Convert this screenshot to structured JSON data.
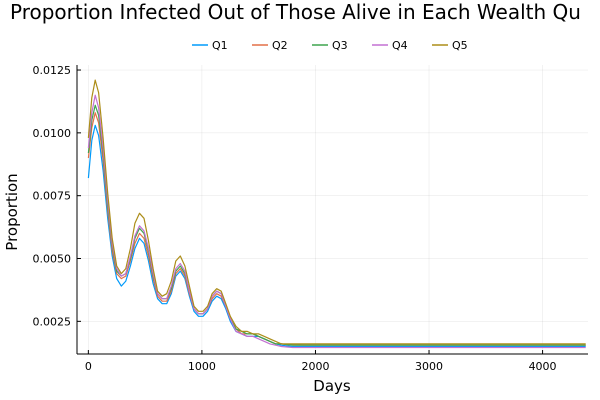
{
  "chart_data": {
    "type": "line",
    "title": "Proportion Infected Out of Those Alive in Each Wealth Qu",
    "xlabel": "Days",
    "ylabel": "Proportion",
    "xlim": [
      -100,
      4400
    ],
    "ylim": [
      0.0012,
      0.0127
    ],
    "grid": true,
    "legend_placement": "top-center",
    "x_ticks": [
      0,
      1000,
      2000,
      3000,
      4000
    ],
    "x_tick_labels": [
      "0",
      "1000",
      "2000",
      "3000",
      "4000"
    ],
    "y_ticks": [
      0.0025,
      0.005,
      0.0075,
      0.01,
      0.0125
    ],
    "y_tick_labels": [
      "0.0025",
      "0.0050",
      "0.0075",
      "0.0100",
      "0.0125"
    ],
    "x": [
      0,
      30,
      60,
      90,
      130,
      170,
      210,
      250,
      290,
      330,
      370,
      410,
      450,
      490,
      530,
      570,
      610,
      650,
      690,
      730,
      770,
      810,
      850,
      890,
      930,
      970,
      1010,
      1050,
      1090,
      1130,
      1170,
      1210,
      1250,
      1300,
      1350,
      1400,
      1450,
      1500,
      1550,
      1600,
      1650,
      1700,
      1750,
      1800,
      1900,
      2000,
      2500,
      3000,
      3500,
      4000,
      4380
    ],
    "series": [
      {
        "name": "Q1",
        "color": "#009AFA",
        "values": [
          0.0082,
          0.0097,
          0.0103,
          0.0099,
          0.0085,
          0.0066,
          0.0051,
          0.0042,
          0.0039,
          0.0041,
          0.0047,
          0.0054,
          0.0058,
          0.0056,
          0.0049,
          0.004,
          0.0034,
          0.0032,
          0.0032,
          0.0036,
          0.0043,
          0.0045,
          0.0042,
          0.0035,
          0.0029,
          0.0027,
          0.0027,
          0.0029,
          0.0033,
          0.0035,
          0.0034,
          0.003,
          0.0025,
          0.0021,
          0.002,
          0.0019,
          0.0019,
          0.0019,
          0.0018,
          0.0017,
          0.0016,
          0.00155,
          0.00152,
          0.0015,
          0.0015,
          0.0015,
          0.0015,
          0.0015,
          0.0015,
          0.0015,
          0.0015
        ]
      },
      {
        "name": "Q2",
        "color": "#E36F47",
        "values": [
          0.009,
          0.0102,
          0.0108,
          0.0104,
          0.0089,
          0.0069,
          0.0053,
          0.0044,
          0.0042,
          0.0043,
          0.0049,
          0.0056,
          0.006,
          0.0058,
          0.0051,
          0.0042,
          0.0035,
          0.0033,
          0.0033,
          0.0037,
          0.0044,
          0.0046,
          0.0043,
          0.0036,
          0.003,
          0.0028,
          0.0028,
          0.003,
          0.0034,
          0.0036,
          0.0035,
          0.0031,
          0.0026,
          0.0022,
          0.002,
          0.002,
          0.002,
          0.0019,
          0.0018,
          0.0017,
          0.0016,
          0.0016,
          0.00157,
          0.00156,
          0.00155,
          0.00155,
          0.00155,
          0.00155,
          0.00155,
          0.00155,
          0.00155
        ]
      },
      {
        "name": "Q3",
        "color": "#3EA44E",
        "values": [
          0.0092,
          0.0105,
          0.0111,
          0.0107,
          0.0092,
          0.0071,
          0.0055,
          0.0045,
          0.0043,
          0.0044,
          0.005,
          0.0058,
          0.0062,
          0.006,
          0.0053,
          0.0043,
          0.0036,
          0.0034,
          0.0034,
          0.0038,
          0.0045,
          0.0047,
          0.0044,
          0.0037,
          0.003,
          0.0028,
          0.0028,
          0.003,
          0.0035,
          0.0037,
          0.0036,
          0.0031,
          0.0026,
          0.0022,
          0.0021,
          0.002,
          0.002,
          0.0019,
          0.0018,
          0.0017,
          0.0016,
          0.0016,
          0.00157,
          0.00155,
          0.00155,
          0.00155,
          0.00155,
          0.00155,
          0.00155,
          0.00155,
          0.00155
        ]
      },
      {
        "name": "Q4",
        "color": "#C271D2",
        "values": [
          0.0094,
          0.0108,
          0.0115,
          0.011,
          0.0094,
          0.0073,
          0.0056,
          0.0046,
          0.0043,
          0.0044,
          0.0051,
          0.0059,
          0.0063,
          0.0061,
          0.0054,
          0.0044,
          0.0036,
          0.0034,
          0.0034,
          0.0039,
          0.0046,
          0.0048,
          0.0045,
          0.0037,
          0.003,
          0.0028,
          0.0028,
          0.003,
          0.0035,
          0.0037,
          0.0036,
          0.0031,
          0.0026,
          0.0021,
          0.002,
          0.0019,
          0.0019,
          0.0018,
          0.0017,
          0.0016,
          0.00155,
          0.0015,
          0.00148,
          0.00146,
          0.00146,
          0.00146,
          0.00146,
          0.00146,
          0.00146,
          0.00146,
          0.00146
        ]
      },
      {
        "name": "Q5",
        "color": "#AC8D18",
        "values": [
          0.0098,
          0.0114,
          0.0121,
          0.0116,
          0.0098,
          0.0076,
          0.0058,
          0.0047,
          0.0044,
          0.0046,
          0.0054,
          0.0064,
          0.0068,
          0.0066,
          0.0057,
          0.0046,
          0.0037,
          0.0035,
          0.0036,
          0.0041,
          0.0049,
          0.0051,
          0.0047,
          0.0039,
          0.0031,
          0.0029,
          0.0029,
          0.0031,
          0.0036,
          0.0038,
          0.0037,
          0.0032,
          0.0027,
          0.0023,
          0.0021,
          0.0021,
          0.002,
          0.002,
          0.0019,
          0.0018,
          0.0017,
          0.0016,
          0.0016,
          0.0016,
          0.0016,
          0.0016,
          0.0016,
          0.0016,
          0.0016,
          0.0016,
          0.0016
        ]
      }
    ]
  }
}
